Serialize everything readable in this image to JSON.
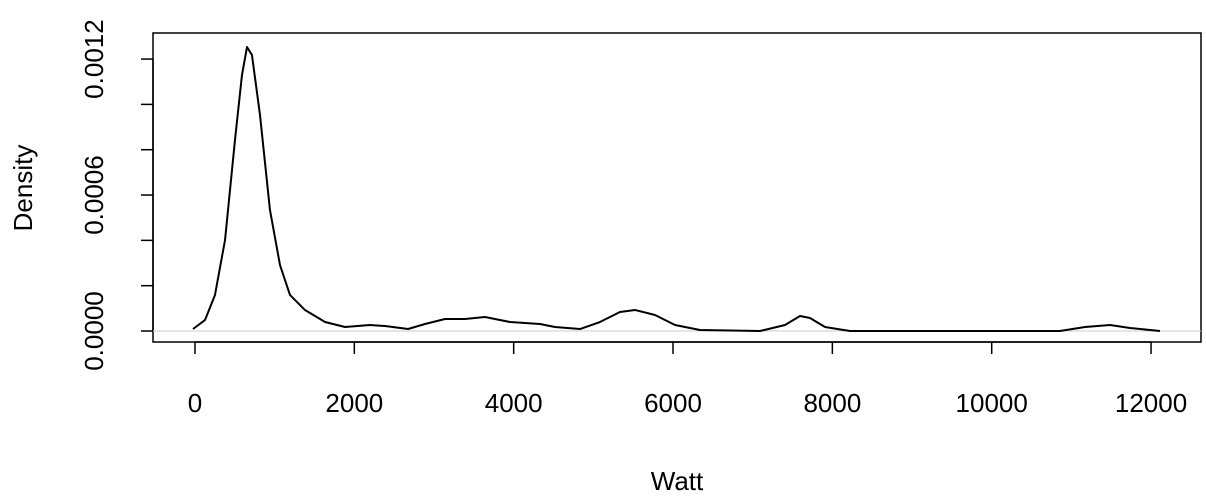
{
  "chart_data": {
    "type": "line",
    "xlabel": "Watt",
    "ylabel": "Density",
    "x": [
      -25,
      126,
      251,
      377,
      502,
      590,
      653,
      715,
      816,
      941,
      1067,
      1192,
      1381,
      1632,
      1883,
      2197,
      2385,
      2674,
      2887,
      3138,
      3389,
      3640,
      3954,
      4330,
      4519,
      4832,
      5083,
      5334,
      5523,
      5774,
      6025,
      6339,
      7092,
      7406,
      7594,
      7719,
      7908,
      8221,
      10857,
      11171,
      11485,
      11736,
      12112
    ],
    "series": [
      {
        "color": "#000000",
        "values": [
          8.8e-06,
          4.85e-05,
          0.000159,
          0.000401,
          0.000843,
          0.00113,
          0.001253,
          0.001218,
          0.000953,
          0.000534,
          0.000291,
          0.000159,
          9.26e-05,
          3.97e-05,
          1.76e-05,
          2.65e-05,
          2.2e-05,
          8.8e-06,
          3.09e-05,
          5.29e-05,
          5.29e-05,
          6.18e-05,
          3.97e-05,
          3.09e-05,
          1.76e-05,
          8.8e-06,
          3.97e-05,
          8.38e-05,
          9.26e-05,
          7.06e-05,
          2.65e-05,
          4.4e-06,
          0,
          2.65e-05,
          6.62e-05,
          5.74e-05,
          1.76e-05,
          0,
          0,
          1.76e-05,
          2.65e-05,
          1.32e-05,
          0
        ]
      }
    ],
    "xlim": [
      -527,
      12627
    ],
    "ylim": [
      -4.85e-05,
      0.001315
    ],
    "xticks": [
      0,
      2000,
      4000,
      6000,
      8000,
      10000,
      12000
    ],
    "yticks": [
      {
        "value": 0,
        "label": "0.0000"
      },
      {
        "value": 0.0002,
        "label": null
      },
      {
        "value": 0.0004,
        "label": null
      },
      {
        "value": 0.0006,
        "label": "0.0006"
      },
      {
        "value": 0.0008,
        "label": null
      },
      {
        "value": 0.001,
        "label": null
      },
      {
        "value": 0.0012,
        "label": "0.0012"
      }
    ]
  }
}
